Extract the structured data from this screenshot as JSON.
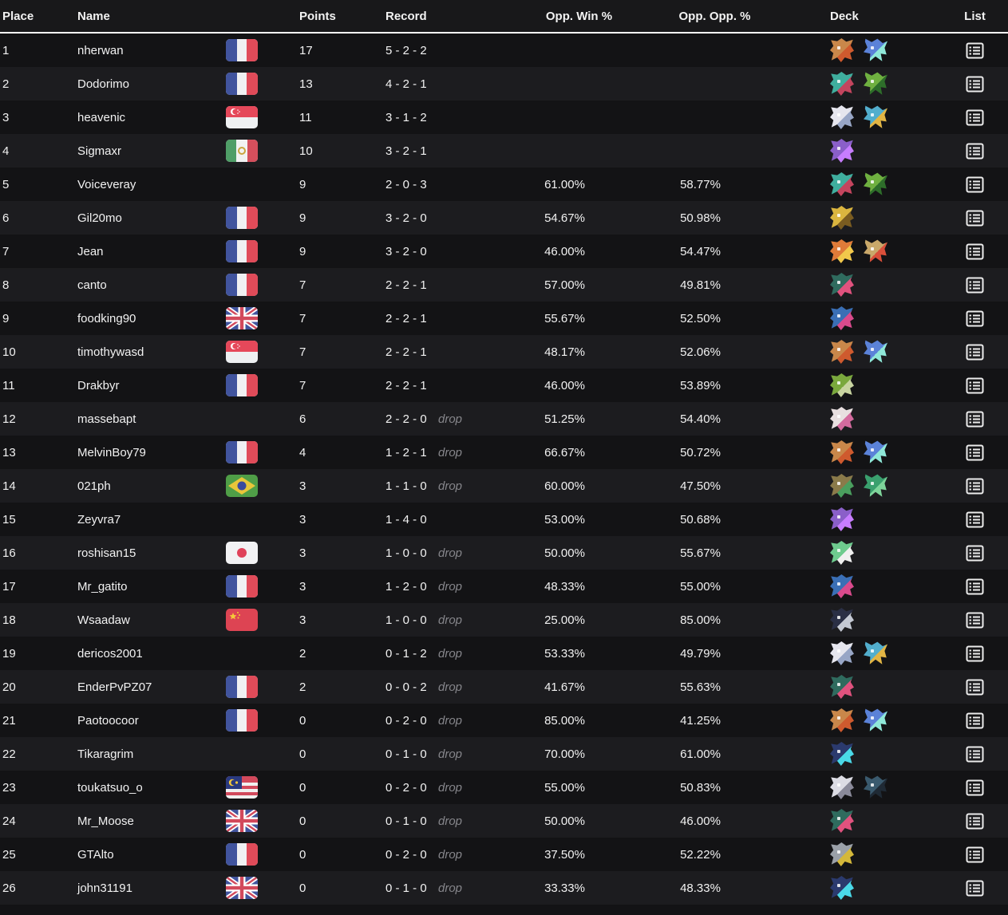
{
  "columns": {
    "place": "Place",
    "name": "Name",
    "points": "Points",
    "record": "Record",
    "opp_win": "Opp. Win %",
    "opp_opp": "Opp. Opp. %",
    "deck": "Deck",
    "list": "List"
  },
  "colors": {
    "row_odd": "#131315",
    "row_even": "#1c1c1f",
    "header_bg": "#18181a",
    "header_border": "#ffffff",
    "text": "#f2f2f2",
    "drop_text": "#85858a"
  },
  "icons": {
    "list_icon": "decklist-icon",
    "flag_names": {
      "fr": "France",
      "sg": "Singapore",
      "mx": "Mexico",
      "gb": "United Kingdom",
      "br": "Brazil",
      "jp": "Japan",
      "cn": "China",
      "my": "Malaysia"
    }
  },
  "deck_sprites": {
    "crab-orange": [
      "#c9874a",
      "#cf5a2e"
    ],
    "fish-crystal-blue": [
      "#5b82d8",
      "#8fe8d8"
    ],
    "dragon-teal-red": [
      "#3fae9e",
      "#c4455e"
    ],
    "parrot-green": [
      "#6fb040",
      "#2e6e2a"
    ],
    "bird-white": [
      "#e6e6ee",
      "#98a6c6"
    ],
    "bird-blue-yellow": [
      "#52aecd",
      "#e2b544"
    ],
    "dragon-purple": [
      "#8a5fc9",
      "#c77dff"
    ],
    "figure-yellow": [
      "#dab53f",
      "#7a5c20"
    ],
    "dragon-orange": [
      "#e07b39",
      "#f2c84b"
    ],
    "bird-brown-red": [
      "#c9a86a",
      "#d94f3a"
    ],
    "dino-teal-pink": [
      "#2f6b5e",
      "#e0527e"
    ],
    "dragon-blue-pink": [
      "#3a6fb5",
      "#d94a8c"
    ],
    "toad-green": [
      "#7aa83d",
      "#c8d4a0"
    ],
    "fluff-white-pink": [
      "#e8dfe0",
      "#d46a9e"
    ],
    "tortoise-green": [
      "#8a7a4a",
      "#4a9e5e"
    ],
    "mask-green": [
      "#3aa06e",
      "#7ed49a"
    ],
    "fairy-green-white": [
      "#6ecb8e",
      "#f0f0f0"
    ],
    "armor-dark": [
      "#2a2f45",
      "#c4c9d4"
    ],
    "dragon-electric-blue": [
      "#2b3a6e",
      "#4ad9e8"
    ],
    "cat-white": [
      "#dcdce4",
      "#8a8a9a"
    ],
    "croc-dark": [
      "#3a5a6e",
      "#1f2a35"
    ],
    "machine-gray": [
      "#9aa0a8",
      "#d4b83a"
    ]
  },
  "rows": [
    {
      "place": "1",
      "name": "nherwan",
      "flag": "fr",
      "points": "17",
      "record": "5 - 2 - 2",
      "drop": "",
      "opp_win": "",
      "opp_opp": "",
      "deck": [
        "crab-orange",
        "fish-crystal-blue"
      ]
    },
    {
      "place": "2",
      "name": "Dodorimo",
      "flag": "fr",
      "points": "13",
      "record": "4 - 2 - 1",
      "drop": "",
      "opp_win": "",
      "opp_opp": "",
      "deck": [
        "dragon-teal-red",
        "parrot-green"
      ]
    },
    {
      "place": "3",
      "name": "heavenic",
      "flag": "sg",
      "points": "11",
      "record": "3 - 1 - 2",
      "drop": "",
      "opp_win": "",
      "opp_opp": "",
      "deck": [
        "bird-white",
        "bird-blue-yellow"
      ]
    },
    {
      "place": "4",
      "name": "Sigmaxr",
      "flag": "mx",
      "points": "10",
      "record": "3 - 2 - 1",
      "drop": "",
      "opp_win": "",
      "opp_opp": "",
      "deck": [
        "dragon-purple"
      ]
    },
    {
      "place": "5",
      "name": "Voiceveray",
      "flag": "",
      "points": "9",
      "record": "2 - 0 - 3",
      "drop": "",
      "opp_win": "61.00%",
      "opp_opp": "58.77%",
      "deck": [
        "dragon-teal-red",
        "parrot-green"
      ]
    },
    {
      "place": "6",
      "name": "Gil20mo",
      "flag": "fr",
      "points": "9",
      "record": "3 - 2 - 0",
      "drop": "",
      "opp_win": "54.67%",
      "opp_opp": "50.98%",
      "deck": [
        "figure-yellow"
      ]
    },
    {
      "place": "7",
      "name": "Jean",
      "flag": "fr",
      "points": "9",
      "record": "3 - 2 - 0",
      "drop": "",
      "opp_win": "46.00%",
      "opp_opp": "54.47%",
      "deck": [
        "dragon-orange",
        "bird-brown-red"
      ]
    },
    {
      "place": "8",
      "name": "canto",
      "flag": "fr",
      "points": "7",
      "record": "2 - 2 - 1",
      "drop": "",
      "opp_win": "57.00%",
      "opp_opp": "49.81%",
      "deck": [
        "dino-teal-pink"
      ]
    },
    {
      "place": "9",
      "name": "foodking90",
      "flag": "gb",
      "points": "7",
      "record": "2 - 2 - 1",
      "drop": "",
      "opp_win": "55.67%",
      "opp_opp": "52.50%",
      "deck": [
        "dragon-blue-pink"
      ]
    },
    {
      "place": "10",
      "name": "timothywasd",
      "flag": "sg",
      "points": "7",
      "record": "2 - 2 - 1",
      "drop": "",
      "opp_win": "48.17%",
      "opp_opp": "52.06%",
      "deck": [
        "crab-orange",
        "fish-crystal-blue"
      ]
    },
    {
      "place": "11",
      "name": "Drakbyr",
      "flag": "fr",
      "points": "7",
      "record": "2 - 2 - 1",
      "drop": "",
      "opp_win": "46.00%",
      "opp_opp": "53.89%",
      "deck": [
        "toad-green"
      ]
    },
    {
      "place": "12",
      "name": "massebapt",
      "flag": "",
      "points": "6",
      "record": "2 - 2 - 0",
      "drop": "drop",
      "opp_win": "51.25%",
      "opp_opp": "54.40%",
      "deck": [
        "fluff-white-pink"
      ]
    },
    {
      "place": "13",
      "name": "MelvinBoy79",
      "flag": "fr",
      "points": "4",
      "record": "1 - 2 - 1",
      "drop": "drop",
      "opp_win": "66.67%",
      "opp_opp": "50.72%",
      "deck": [
        "crab-orange",
        "fish-crystal-blue"
      ]
    },
    {
      "place": "14",
      "name": "021ph",
      "flag": "br",
      "points": "3",
      "record": "1 - 1 - 0",
      "drop": "drop",
      "opp_win": "60.00%",
      "opp_opp": "47.50%",
      "deck": [
        "tortoise-green",
        "mask-green"
      ]
    },
    {
      "place": "15",
      "name": "Zeyvra7",
      "flag": "",
      "points": "3",
      "record": "1 - 4 - 0",
      "drop": "",
      "opp_win": "53.00%",
      "opp_opp": "50.68%",
      "deck": [
        "dragon-purple"
      ]
    },
    {
      "place": "16",
      "name": "roshisan15",
      "flag": "jp",
      "points": "3",
      "record": "1 - 0 - 0",
      "drop": "drop",
      "opp_win": "50.00%",
      "opp_opp": "55.67%",
      "deck": [
        "fairy-green-white"
      ]
    },
    {
      "place": "17",
      "name": "Mr_gatito",
      "flag": "fr",
      "points": "3",
      "record": "1 - 2 - 0",
      "drop": "drop",
      "opp_win": "48.33%",
      "opp_opp": "55.00%",
      "deck": [
        "dragon-blue-pink"
      ]
    },
    {
      "place": "18",
      "name": "Wsaadaw",
      "flag": "cn",
      "points": "3",
      "record": "1 - 0 - 0",
      "drop": "drop",
      "opp_win": "25.00%",
      "opp_opp": "85.00%",
      "deck": [
        "armor-dark"
      ]
    },
    {
      "place": "19",
      "name": "dericos2001",
      "flag": "",
      "points": "2",
      "record": "0 - 1 - 2",
      "drop": "drop",
      "opp_win": "53.33%",
      "opp_opp": "49.79%",
      "deck": [
        "bird-white",
        "bird-blue-yellow"
      ]
    },
    {
      "place": "20",
      "name": "EnderPvPZ07",
      "flag": "fr",
      "points": "2",
      "record": "0 - 0 - 2",
      "drop": "drop",
      "opp_win": "41.67%",
      "opp_opp": "55.63%",
      "deck": [
        "dino-teal-pink"
      ]
    },
    {
      "place": "21",
      "name": "Paotoocoor",
      "flag": "fr",
      "points": "0",
      "record": "0 - 2 - 0",
      "drop": "drop",
      "opp_win": "85.00%",
      "opp_opp": "41.25%",
      "deck": [
        "crab-orange",
        "fish-crystal-blue"
      ]
    },
    {
      "place": "22",
      "name": "Tikaragrim",
      "flag": "",
      "points": "0",
      "record": "0 - 1 - 0",
      "drop": "drop",
      "opp_win": "70.00%",
      "opp_opp": "61.00%",
      "deck": [
        "dragon-electric-blue"
      ]
    },
    {
      "place": "23",
      "name": "toukatsuo_o",
      "flag": "my",
      "points": "0",
      "record": "0 - 2 - 0",
      "drop": "drop",
      "opp_win": "55.00%",
      "opp_opp": "50.83%",
      "deck": [
        "cat-white",
        "croc-dark"
      ]
    },
    {
      "place": "24",
      "name": "Mr_Moose",
      "flag": "gb",
      "points": "0",
      "record": "0 - 1 - 0",
      "drop": "drop",
      "opp_win": "50.00%",
      "opp_opp": "46.00%",
      "deck": [
        "dino-teal-pink"
      ]
    },
    {
      "place": "25",
      "name": "GTAlto",
      "flag": "fr",
      "points": "0",
      "record": "0 - 2 - 0",
      "drop": "drop",
      "opp_win": "37.50%",
      "opp_opp": "52.22%",
      "deck": [
        "machine-gray"
      ]
    },
    {
      "place": "26",
      "name": "john31191",
      "flag": "gb",
      "points": "0",
      "record": "0 - 1 - 0",
      "drop": "drop",
      "opp_win": "33.33%",
      "opp_opp": "48.33%",
      "deck": [
        "dragon-electric-blue"
      ]
    }
  ]
}
